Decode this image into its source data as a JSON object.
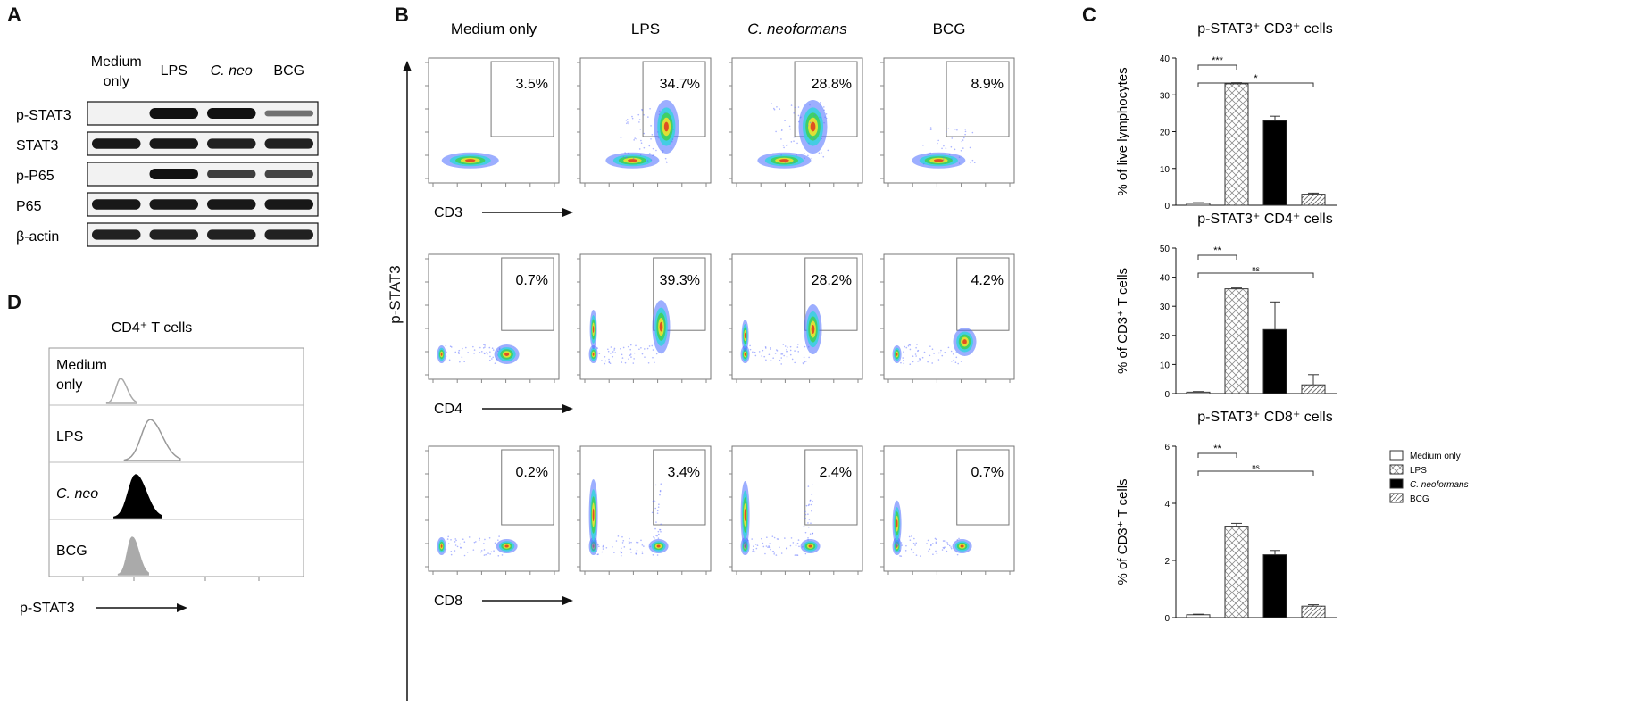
{
  "panels": {
    "a": {
      "letter": "A",
      "columns": [
        {
          "lines": [
            "Medium",
            "only"
          ],
          "italic": false
        },
        {
          "lines": [
            "LPS"
          ],
          "italic": false
        },
        {
          "lines": [
            "C. neo"
          ],
          "italic": true
        },
        {
          "lines": [
            "BCG"
          ],
          "italic": false
        }
      ],
      "rows": [
        {
          "label": "p-STAT3",
          "intensities": [
            0.0,
            1.0,
            1.0,
            0.35
          ]
        },
        {
          "label": "STAT3",
          "intensities": [
            0.95,
            0.95,
            0.9,
            0.9
          ]
        },
        {
          "label": "p-P65",
          "intensities": [
            0.0,
            1.0,
            0.7,
            0.65
          ]
        },
        {
          "label": "P65",
          "intensities": [
            0.95,
            0.95,
            0.95,
            0.95
          ]
        },
        {
          "label": "β-actin",
          "intensities": [
            0.9,
            0.9,
            0.9,
            0.9
          ]
        }
      ]
    },
    "b": {
      "letter": "B",
      "columns": [
        {
          "label": "Medium only",
          "italic": false
        },
        {
          "label": "LPS",
          "italic": false
        },
        {
          "label": "C. neoformans",
          "italic": true
        },
        {
          "label": "BCG",
          "italic": false
        }
      ],
      "y_axis_label": "p-STAT3",
      "rows": [
        {
          "x_label": "CD3",
          "percents": [
            "3.5%",
            "34.7%",
            "28.8%",
            "8.9%"
          ]
        },
        {
          "x_label": "CD4",
          "percents": [
            "0.7%",
            "39.3%",
            "28.2%",
            "4.2%"
          ]
        },
        {
          "x_label": "CD8",
          "percents": [
            "0.2%",
            "3.4%",
            "2.4%",
            "0.7%"
          ]
        }
      ]
    },
    "d": {
      "letter": "D",
      "title": "CD4⁺ T cells",
      "x_label": "p-STAT3",
      "samples": [
        {
          "lines": [
            "Medium",
            "only"
          ],
          "italic": false,
          "fill": "none",
          "stroke": "#aaaaaa"
        },
        {
          "lines": [
            "LPS"
          ],
          "italic": false,
          "fill": "none",
          "stroke": "#999999"
        },
        {
          "lines": [
            "C. neo"
          ],
          "italic": true,
          "fill": "#000000",
          "stroke": "#000000"
        },
        {
          "lines": [
            "BCG"
          ],
          "italic": false,
          "fill": "#aaaaaa",
          "stroke": "#aaaaaa"
        }
      ]
    },
    "c": {
      "letter": "C",
      "legend": [
        "Medium only",
        "LPS",
        "C. neoformans",
        "BCG"
      ]
    }
  },
  "chart_data": [
    {
      "type": "bar",
      "title": "p-STAT3⁺ CD3⁺ cells",
      "ylabel": "% of live lymphocytes",
      "categories": [
        "Medium only",
        "LPS",
        "C. neoformans",
        "BCG"
      ],
      "values": [
        0.5,
        33,
        23,
        3
      ],
      "errors": [
        0.2,
        0.3,
        1.2,
        0.3
      ],
      "ylim": [
        0,
        40
      ],
      "yticks": [
        0,
        10,
        20,
        30,
        40
      ],
      "significance": [
        {
          "from": 0,
          "to": 1,
          "label": "***"
        },
        {
          "from": 0,
          "to": 3,
          "label": "*"
        }
      ]
    },
    {
      "type": "bar",
      "title": "p-STAT3⁺ CD4⁺ cells",
      "ylabel": "% of CD3⁺ T cells",
      "categories": [
        "Medium only",
        "LPS",
        "C. neoformans",
        "BCG"
      ],
      "values": [
        0.5,
        36,
        22,
        3
      ],
      "errors": [
        0.2,
        0.3,
        9.5,
        3.5
      ],
      "ylim": [
        0,
        50
      ],
      "yticks": [
        0,
        10,
        20,
        30,
        40,
        50
      ],
      "significance": [
        {
          "from": 0,
          "to": 1,
          "label": "**"
        },
        {
          "from": 0,
          "to": 3,
          "label": "ns"
        }
      ]
    },
    {
      "type": "bar",
      "title": "p-STAT3⁺ CD8⁺ cells",
      "ylabel": "% of CD3⁺ T cells",
      "categories": [
        "Medium only",
        "LPS",
        "C. neoformans",
        "BCG"
      ],
      "values": [
        0.1,
        3.2,
        2.2,
        0.4
      ],
      "errors": [
        0.02,
        0.1,
        0.15,
        0.05
      ],
      "ylim": [
        0,
        6
      ],
      "yticks": [
        0,
        2,
        4,
        6
      ],
      "significance": [
        {
          "from": 0,
          "to": 1,
          "label": "**"
        },
        {
          "from": 0,
          "to": 3,
          "label": "ns"
        }
      ]
    }
  ]
}
